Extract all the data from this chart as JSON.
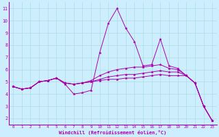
{
  "xlabel": "Windchill (Refroidissement éolien,°C)",
  "xlim": [
    -0.5,
    23.5
  ],
  "ylim": [
    1.5,
    11.5
  ],
  "xticks": [
    0,
    1,
    2,
    3,
    4,
    5,
    6,
    7,
    8,
    9,
    10,
    11,
    12,
    13,
    14,
    15,
    16,
    17,
    18,
    19,
    20,
    21,
    22,
    23
  ],
  "yticks": [
    2,
    3,
    4,
    5,
    6,
    7,
    8,
    9,
    10,
    11
  ],
  "background_color": "#cceeff",
  "grid_color": "#aadddd",
  "line_color": "#aa00aa",
  "spine_color": "#aa00aa",
  "xlabel_color": "#aa00aa",
  "tick_color": "#aa00aa",
  "lines": [
    [
      4.6,
      4.4,
      4.5,
      5.0,
      5.1,
      5.3,
      4.8,
      4.0,
      4.1,
      4.3,
      7.4,
      9.8,
      11.0,
      9.4,
      8.3,
      6.3,
      6.4,
      8.5,
      6.3,
      6.1,
      5.5,
      4.9,
      3.0,
      1.8
    ],
    [
      4.6,
      4.4,
      4.5,
      5.0,
      5.1,
      5.3,
      4.9,
      4.8,
      4.9,
      5.1,
      5.5,
      5.8,
      6.0,
      6.1,
      6.2,
      6.2,
      6.3,
      6.4,
      6.1,
      6.0,
      5.5,
      4.9,
      3.0,
      1.8
    ],
    [
      4.6,
      4.4,
      4.5,
      5.0,
      5.1,
      5.3,
      4.9,
      4.8,
      4.9,
      5.0,
      5.2,
      5.4,
      5.5,
      5.6,
      5.6,
      5.7,
      5.8,
      5.9,
      5.8,
      5.8,
      5.5,
      4.9,
      3.0,
      1.8
    ],
    [
      4.6,
      4.4,
      4.5,
      5.0,
      5.1,
      5.3,
      4.9,
      4.8,
      4.9,
      5.0,
      5.1,
      5.2,
      5.2,
      5.3,
      5.3,
      5.4,
      5.5,
      5.6,
      5.5,
      5.5,
      5.5,
      4.9,
      3.0,
      1.8
    ]
  ]
}
